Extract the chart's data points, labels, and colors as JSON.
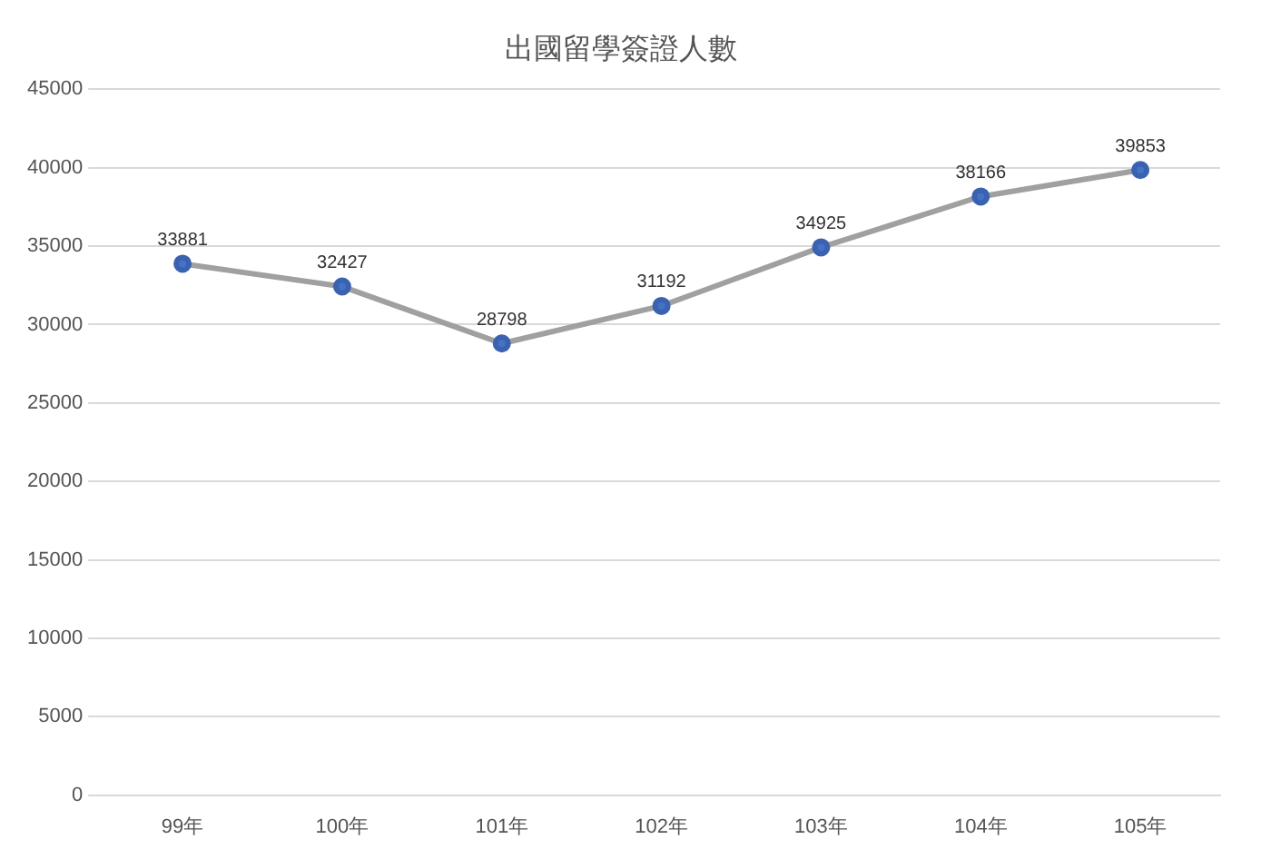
{
  "chart_data": {
    "type": "line",
    "title": "出國留學簽證人數",
    "categories": [
      "99年",
      "100年",
      "101年",
      "102年",
      "103年",
      "104年",
      "105年"
    ],
    "series": [
      {
        "color": "#a0a0a0",
        "values": [
          33881,
          32427,
          28798,
          31192,
          34925,
          38166,
          39853
        ]
      }
    ],
    "ylim": [
      0,
      45000
    ],
    "yticks": [
      0,
      5000,
      10000,
      15000,
      20000,
      25000,
      30000,
      35000,
      40000,
      45000
    ],
    "grid": "y",
    "marker": "circle",
    "data_labels": true,
    "legend": false,
    "line_style": "solid"
  }
}
